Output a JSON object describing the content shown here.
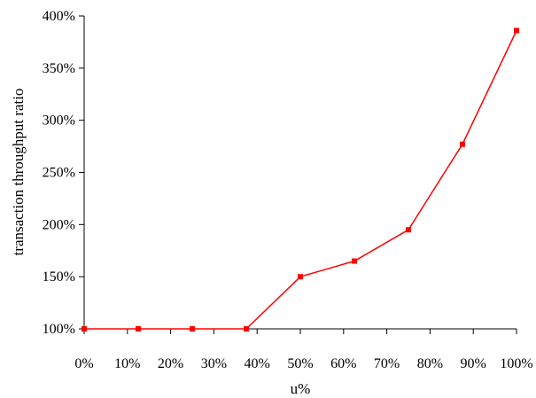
{
  "chart_data": {
    "type": "line",
    "xlabel": "u%",
    "ylabel": "transaction throughput ratio",
    "xlim": [
      0,
      100
    ],
    "ylim": [
      100,
      400
    ],
    "x_ticks": [
      "0%",
      "10%",
      "20%",
      "30%",
      "40%",
      "50%",
      "60%",
      "70%",
      "80%",
      "90%",
      "100%"
    ],
    "y_ticks": [
      "100%",
      "150%",
      "200%",
      "250%",
      "300%",
      "350%",
      "400%"
    ],
    "grid": false,
    "legend": "none",
    "series": [
      {
        "color": "#ff0000",
        "marker": "square",
        "x": [
          0,
          12.5,
          25,
          37.5,
          50,
          62.5,
          75,
          87.5,
          100
        ],
        "y": [
          100,
          100,
          100,
          100,
          150,
          165,
          195,
          277,
          386
        ]
      }
    ]
  }
}
